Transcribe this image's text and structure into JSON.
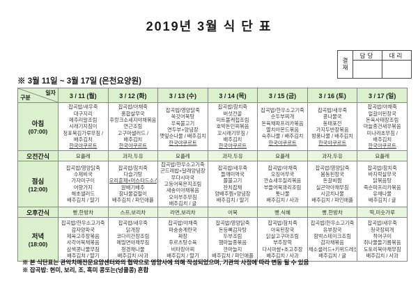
{
  "title": "2019년 3월 식 단 표",
  "approval": {
    "stamp_label": "결재",
    "col1": "담당",
    "col2": "대리"
  },
  "subtitle": "※ 3월 11일 ~ 3월 17일 (은천요양원)",
  "colors": {
    "header_green": "#dbf0cc",
    "snack_green": "#e8f6dd",
    "grid": "#878787"
  },
  "underlined_items": [
    "한국야쿠르트",
    "오리훈제+머스타드소스"
  ],
  "table": {
    "corner": {
      "top": "일자",
      "bottom": "구분"
    },
    "dates": [
      "3 / 11 (월)",
      "3 / 12 (화)",
      "3 / 13 (수)",
      "3 / 14 (목)",
      "3 / 15 (금)",
      "3 / 16 (토)",
      "3 / 17 (일)"
    ],
    "rows": [
      {
        "id": "breakfast",
        "label": "아침",
        "time": "(07:00)",
        "type": "meal",
        "cells": [
          [
            "잡곡밥/새우죽",
            "대구지리",
            "메추리알조림",
            "시래기지짐이",
            "청포묵김가루무침 /",
            "배추김치",
            "한국야쿠르트"
          ],
          [
            "잡곡밥/야채죽",
            "홍합살무국",
            "후랑크소세지야채볶음",
            "연근조림",
            "고구마샐러드 /",
            "배추김치",
            "한국야쿠르트"
          ],
          [
            "잡곡밥/영양닭죽",
            "쑥갓어묵탕",
            "우육불고기",
            "연두부+양념장",
            "깻잎순나물 / 배추김치",
            "한국야쿠르트"
          ],
          [
            "잡곡밥/참치죽",
            "버섯전골",
            "미트볼케첩조림",
            "호박돈민찌볶음",
            "꼬시래기무침 /",
            "배추김치",
            "한국야쿠르트"
          ],
          [
            "잡곡밥/한우소고기죽",
            "순두부찌개",
            "돈육채파프리카볶음",
            "멸치아몬드볶음",
            "숙주나물 / 배추김치",
            "한국야쿠르트"
          ],
          [
            "잡곡밥/새우죽",
            "콩나물국",
            "동태포전",
            "가지두반장볶음",
            "방풍나물 / 배추김치",
            "한국야쿠르트"
          ],
          [
            "잡곡밥/야채죽",
            "얼갈이된장국",
            "돈육사태장조림",
            "마늘종건새우볶음",
            "미나리초무침 /",
            "배추김치",
            "한국야쿠르트"
          ]
        ]
      },
      {
        "id": "am-snack",
        "label": "오전간식",
        "type": "snack",
        "cells": [
          "요플레",
          "과자,두유",
          "요플레",
          "과자,두유",
          "요플레",
          "과자,두유",
          "요플레"
        ]
      },
      {
        "id": "lunch",
        "label": "점심",
        "time": "(12:00)",
        "type": "meal",
        "cells": [
          [
            "잡곡밥/영양닭죽",
            "수제비국",
            "가자미구이",
            "어향가지",
            "해초샐러드",
            "배추김치 / 딸기"
          ],
          [
            "잡곡밥/참치죽",
            "다슬기탕",
            "오리훈제+머스타드소스",
            "알배기배추",
            "참나물겉절이",
            "배추김치 / 파인애플"
          ],
          [
            "잡곡밥/한우소고기죽",
            "곤드레밥+달래양념장",
            "무다시마국",
            "고등어묵은지조림",
            "새송이야채볶음",
            "오이부추무침",
            "배추김치 / 귤"
          ],
          [
            "잡곡밥/새우죽",
            "들깨미역국",
            "쫄불고기",
            "잔치잡채",
            "양배추찜+양념장",
            "배추김치 / 딸기"
          ],
          [
            "잡곡밥/야채죽",
            "오징어무국",
            "깐쇼새우칠리볶음",
            "부들어묵꽈리조림",
            "톳나물",
            "배추김치 / 사과"
          ],
          [
            "잡곡밥/영양닭죽",
            "봄동된장국",
            "돈갈비찜",
            "실곤약야채무침",
            "시금치나물",
            "배추김치 / 파인애플"
          ],
          [
            "잡곡밥/참치죽",
            "바지락살무국",
            "닭볶음탕",
            "죽순파프리카볶음",
            "유채나물",
            "배추김치 / 귤"
          ]
        ]
      },
      {
        "id": "pm-snack",
        "label": "오후간식",
        "type": "snack",
        "cells": [
          "빵,한방차",
          "스프,보리차",
          "라면,보리차",
          "어묵",
          "빵,식혜",
          "빵,한방차",
          "떡,미숫가루"
        ]
      },
      {
        "id": "dinner",
        "label": "저녁",
        "time": "(18:00)",
        "type": "meal",
        "cells": [
          [
            "잡곡밥/한우소고기죽",
            "감자양파국",
            "제육고추장볶음",
            "사각어묵채볶음",
            "삼색콩나물무침",
            "배추김치 / 딸기"
          ],
          [
            "잡곡밥/새우죽",
            "닭개장",
            "코다리간장조림",
            "메밀면야채무침",
            "청경채나물",
            "배추김치 /사과"
          ],
          [
            "잡곡밥/야채죽",
            "파송송계란국",
            "짜장",
            "후르츠탕수육",
            "비타장아찌",
            "배추김치 / 딸기"
          ],
          [
            "잡곡밥/영양닭죽",
            "돈등뼈감자탕",
            "두부조림",
            "햄마늘종볶음",
            "깐마늘지",
            "배추김치 / 파인애플"
          ],
          [
            "잡곡밥/참치죽",
            "아욱된장국",
            "닭살고구마조림",
            "부추장떡",
            "다시마쌈+초고추장",
            "배추김치 / 사과"
          ],
          [
            "잡곡밥/한우소고기죽",
            "유부장국",
            "함박스테이크조림",
            "감자채볶음",
            "채소샐러드+키위드레싱",
            "배추김치 / 귤"
          ],
          [
            "잡곡밥/새우죽",
            "청국장찌개",
            "적어구이",
            "취나물들기름볶음",
            "도토리묵야채무침",
            "배추김치 / 사과"
          ]
        ]
      }
    ]
  },
  "notes": [
    "※ 본 식단표는 관악치매전문요양센터와의 협약으로 영양사에 의해 작성되었으며, 기관의 사정에 따라 변동 될 수 있음",
    "※ 잡곡밥: 현미, 보리, 조, 흑미 콩또는(넝쿨콩) 혼합"
  ]
}
